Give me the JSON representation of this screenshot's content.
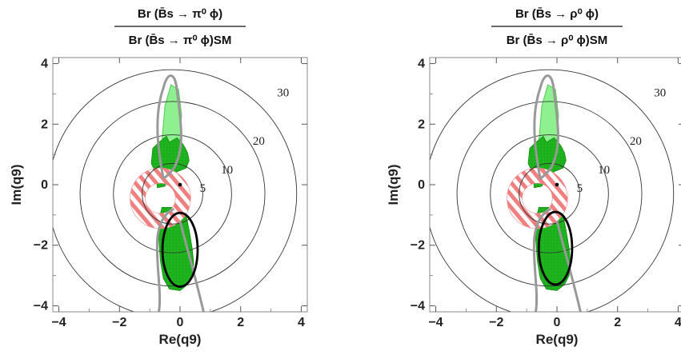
{
  "chart_data": [
    {
      "type": "contour",
      "title_numerator": "Br (B̄s → π⁰ ϕ)",
      "title_denominator": "Br (B̄s → π⁰ ϕ)SM",
      "xlabel": "Re(q9)",
      "ylabel": "Im(q9)",
      "xlim": [
        -4.2,
        4.2
      ],
      "ylim": [
        -4.2,
        4.2
      ],
      "xticks": [
        "−4",
        "−2",
        "0",
        "2",
        "4"
      ],
      "yticks": [
        "−4",
        "−2",
        "0",
        "2",
        "4"
      ],
      "contour_center": [
        -0.25,
        -0.3
      ],
      "contour_levels": [
        {
          "label": "5",
          "radius": 1.0
        },
        {
          "label": "10",
          "radius": 1.95
        },
        {
          "label": "20",
          "radius": 3.05
        },
        {
          "label": "30",
          "radius": 4.1
        }
      ],
      "hatched_annulus": {
        "center": [
          -0.65,
          -0.45
        ],
        "r_inner": 0.5,
        "r_outer": 1.0,
        "colors": [
          "#f08080",
          "#ffffff"
        ]
      },
      "sm_point": [
        0.0,
        0.0
      ],
      "black_contour": {
        "center": [
          0.0,
          -2.15
        ],
        "rx": 0.58,
        "ry": 1.22
      },
      "colors": {
        "dark_green": "#1fb51f",
        "light_green": "#8ef08e",
        "gray_contour": "#999999",
        "hatch_red": "#f08080"
      }
    },
    {
      "type": "contour",
      "title_numerator": "Br (B̄s → ρ⁰ ϕ)",
      "title_denominator": "Br (B̄s → ρ⁰ ϕ)SM",
      "xlabel": "Re(q9)",
      "ylabel": "Im(q9)",
      "xlim": [
        -4.2,
        4.2
      ],
      "ylim": [
        -4.2,
        4.2
      ],
      "xticks": [
        "−4",
        "−2",
        "0",
        "2",
        "4"
      ],
      "yticks": [
        "−4",
        "−2",
        "0",
        "2",
        "4"
      ],
      "contour_center": [
        -0.25,
        -0.3
      ],
      "contour_levels": [
        {
          "label": "5",
          "radius": 1.0
        },
        {
          "label": "10",
          "radius": 1.95
        },
        {
          "label": "20",
          "radius": 3.05
        },
        {
          "label": "30",
          "radius": 4.1
        }
      ],
      "hatched_annulus": {
        "center": [
          -0.65,
          -0.45
        ],
        "r_inner": 0.5,
        "r_outer": 1.0,
        "colors": [
          "#f08080",
          "#ffffff"
        ]
      },
      "sm_point": [
        0.0,
        0.0
      ],
      "black_contour": {
        "center": [
          -0.05,
          -2.1
        ],
        "rx": 0.55,
        "ry": 1.2
      },
      "colors": {
        "dark_green": "#1fb51f",
        "light_green": "#8ef08e",
        "gray_contour": "#999999",
        "hatch_red": "#f08080"
      }
    }
  ]
}
